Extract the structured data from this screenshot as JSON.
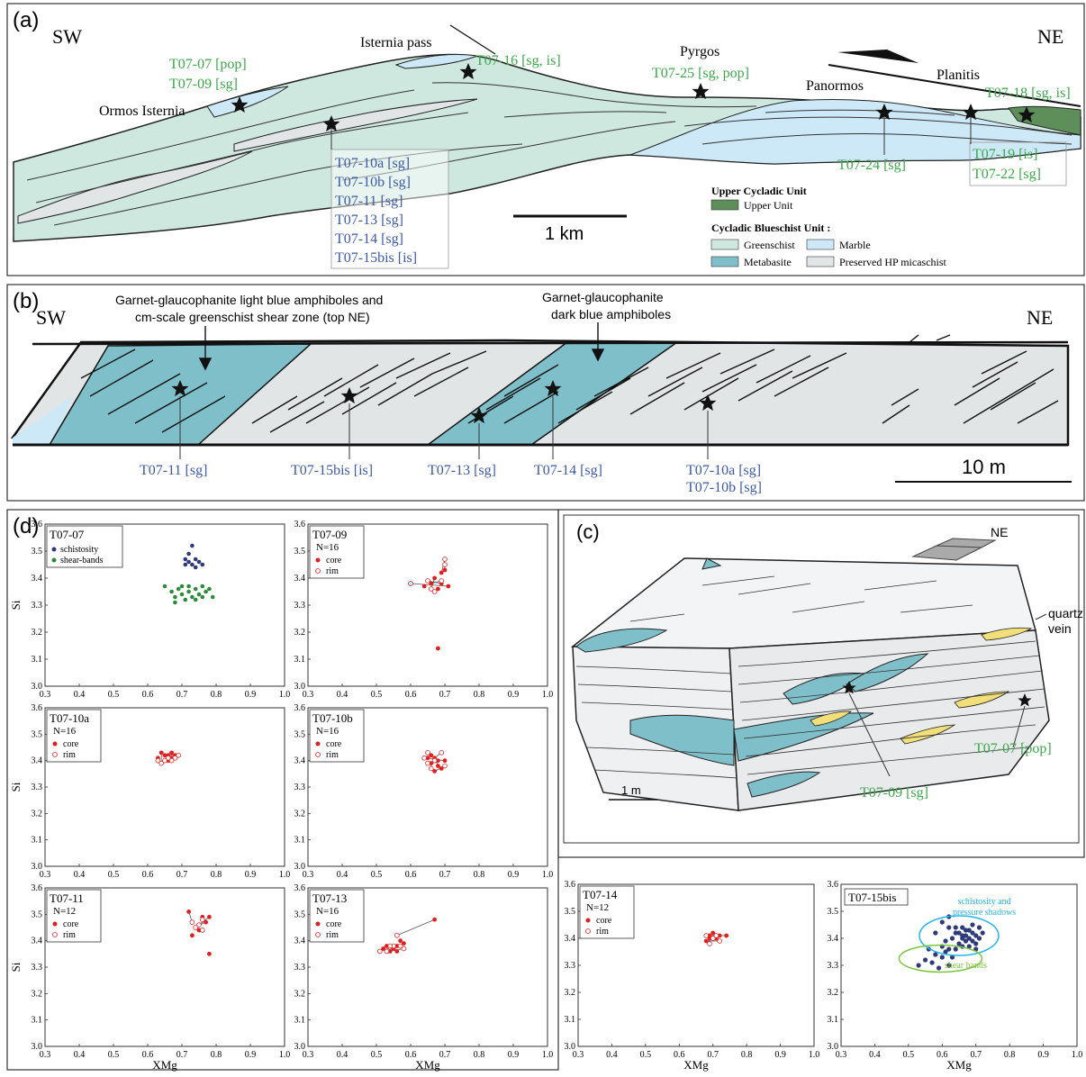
{
  "colors": {
    "greenschist": "#cfe8df",
    "marble": "#cde9f7",
    "metabasite": "#7fbfca",
    "micaschist": "#e2e5e6",
    "upper_unit": "#5e8f5b",
    "green_label": "#3ba84a",
    "blue_label": "#3d5aa6",
    "schist_blue": "#2e3a7a",
    "shear_green": "#2e8b3a",
    "core_red": "#e02020",
    "light_cyan": "#25b5e8",
    "light_green": "#7dc53e",
    "quartz": "#f2df7a"
  },
  "panel_a": {
    "label": "(a)",
    "sw": "SW",
    "ne": "NE",
    "places": {
      "ormos": "Ormos Isternia",
      "isternia": "Isternia pass",
      "pyrgos": "Pyrgos",
      "panormos": "Panormos",
      "planitis": "Planitis"
    },
    "samples": {
      "t0707": "T07-07 [pop]",
      "t0709": "T07-09 [sg]",
      "t0716": "T07-16 [sg, is]",
      "t0725": "T07-25 [sg, pop]",
      "t0718": "T07-18 [sg, is]",
      "t0724": "T07-24 [sg]",
      "t0719": "T07-19 [is]",
      "t0722": "T07-22 [sg]",
      "t0710a": "T07-10a [sg]",
      "t0710b": "T07-10b [sg]",
      "t0711": "T07-11 [sg]",
      "t0713": "T07-13 [sg]",
      "t0714": "T07-14 [sg]",
      "t0715bis": "T07-15bis [is]"
    },
    "scale": "1 km",
    "legend": {
      "upper_heading": "Upper Cycladic Unit",
      "upper_unit": "Upper Unit",
      "cbu_heading": "Cycladic Blueschist Unit :",
      "greenschist": "Greenschist",
      "marble": "Marble",
      "metabasite": "Metabasite",
      "micaschist": "Preserved HP micaschist"
    }
  },
  "panel_b": {
    "label": "(b)",
    "sw": "SW",
    "ne": "NE",
    "annot1_line1": "Garnet-glaucophanite light blue amphiboles and",
    "annot1_line2": "cm-scale greenschist shear zone (top NE)",
    "annot2_line1": "Garnet-glaucophanite",
    "annot2_line2": "dark blue amphiboles",
    "samples": {
      "t0711": "T07-11 [sg]",
      "t0715bis": "T07-15bis [is]",
      "t0713": "T07-13 [sg]",
      "t0714": "T07-14 [sg]",
      "t0710a": "T07-10a [sg]",
      "t0710b": "T07-10b [sg]"
    },
    "scale": "10 m"
  },
  "panel_c": {
    "label": "(c)",
    "ne": "NE",
    "quartz1": "quartz",
    "quartz2": "vein",
    "t0707": "T07-07 [pop]",
    "t0709": "T07-09 [sg]",
    "scale": "1 m"
  },
  "panel_d": {
    "label": "(d)",
    "xlabel": "XMg",
    "ylabel": "Si",
    "xticks": [
      "0.3",
      "0.4",
      "0.5",
      "0.6",
      "0.7",
      "0.8",
      "0.9",
      "1.0"
    ],
    "yticks": [
      "3.0",
      "3.1",
      "3.2",
      "3.3",
      "3.4",
      "3.5",
      "3.6"
    ],
    "plots": [
      {
        "title": "T07-07",
        "leg": [
          "schistosity",
          "shear-bands"
        ]
      },
      {
        "title": "T07-09",
        "n": "N=16",
        "leg": [
          "core",
          "rim"
        ]
      },
      {
        "title": "T07-10a",
        "n": "N=16",
        "leg": [
          "core",
          "rim"
        ]
      },
      {
        "title": "T07-10b",
        "n": "N=16",
        "leg": [
          "core",
          "rim"
        ]
      },
      {
        "title": "T07-11",
        "n": "N=12",
        "leg": [
          "core",
          "rim"
        ]
      },
      {
        "title": "T07-13",
        "n": "N=16",
        "leg": [
          "core",
          "rim"
        ]
      },
      {
        "title": "T07-14",
        "n": "N=12",
        "leg": [
          "core",
          "rim"
        ]
      },
      {
        "title": "T07-15bis",
        "ann1a": "schistosity and",
        "ann1b": "pressure shadows",
        "ann2": "shear bands"
      }
    ]
  },
  "chart_data": [
    {
      "type": "scatter",
      "title": "T07-07",
      "xlim": [
        0.3,
        1.0
      ],
      "ylim": [
        3.0,
        3.6
      ],
      "series": [
        {
          "name": "schistosity",
          "points": [
            [
              0.73,
              3.52
            ],
            [
              0.72,
              3.49
            ],
            [
              0.71,
              3.47
            ],
            [
              0.72,
              3.46
            ],
            [
              0.74,
              3.47
            ],
            [
              0.73,
              3.45
            ],
            [
              0.75,
              3.46
            ],
            [
              0.74,
              3.44
            ],
            [
              0.71,
              3.45
            ],
            [
              0.76,
              3.45
            ]
          ]
        },
        {
          "name": "shear-bands",
          "points": [
            [
              0.65,
              3.37
            ],
            [
              0.67,
              3.35
            ],
            [
              0.68,
              3.33
            ],
            [
              0.69,
              3.36
            ],
            [
              0.7,
              3.34
            ],
            [
              0.71,
              3.32
            ],
            [
              0.72,
              3.35
            ],
            [
              0.73,
              3.33
            ],
            [
              0.74,
              3.36
            ],
            [
              0.75,
              3.34
            ],
            [
              0.76,
              3.37
            ],
            [
              0.77,
              3.35
            ],
            [
              0.78,
              3.36
            ],
            [
              0.79,
              3.33
            ],
            [
              0.72,
              3.37
            ],
            [
              0.74,
              3.32
            ],
            [
              0.76,
              3.33
            ],
            [
              0.68,
              3.31
            ],
            [
              0.7,
              3.37
            ]
          ]
        }
      ]
    },
    {
      "type": "scatter",
      "title": "T07-09",
      "xlim": [
        0.3,
        1.0
      ],
      "ylim": [
        3.0,
        3.6
      ],
      "series": [
        {
          "name": "core",
          "points": [
            [
              0.69,
              3.42
            ],
            [
              0.7,
              3.43
            ],
            [
              0.71,
              3.37
            ],
            [
              0.67,
              3.4
            ],
            [
              0.66,
              3.38
            ],
            [
              0.68,
              3.36
            ],
            [
              0.69,
              3.38
            ],
            [
              0.64,
              3.37
            ],
            [
              0.68,
              3.14
            ]
          ]
        },
        {
          "name": "rim",
          "points": [
            [
              0.7,
              3.47
            ],
            [
              0.7,
              3.45
            ],
            [
              0.6,
              3.38
            ],
            [
              0.66,
              3.36
            ],
            [
              0.69,
              3.39
            ],
            [
              0.67,
              3.35
            ],
            [
              0.65,
              3.39
            ]
          ]
        }
      ]
    },
    {
      "type": "scatter",
      "title": "T07-10a",
      "xlim": [
        0.3,
        1.0
      ],
      "ylim": [
        3.0,
        3.6
      ],
      "series": [
        {
          "name": "core",
          "points": [
            [
              0.64,
              3.43
            ],
            [
              0.66,
              3.42
            ],
            [
              0.65,
              3.4
            ],
            [
              0.67,
              3.41
            ],
            [
              0.68,
              3.42
            ],
            [
              0.63,
              3.41
            ],
            [
              0.66,
              3.4
            ],
            [
              0.65,
              3.42
            ],
            [
              0.67,
              3.43
            ]
          ]
        },
        {
          "name": "rim",
          "points": [
            [
              0.64,
              3.39
            ],
            [
              0.69,
              3.42
            ],
            [
              0.66,
              3.41
            ],
            [
              0.65,
              3.4
            ],
            [
              0.68,
              3.41
            ],
            [
              0.63,
              3.4
            ],
            [
              0.67,
              3.4
            ]
          ]
        }
      ]
    },
    {
      "type": "scatter",
      "title": "T07-10b",
      "xlim": [
        0.3,
        1.0
      ],
      "ylim": [
        3.0,
        3.6
      ],
      "series": [
        {
          "name": "core",
          "points": [
            [
              0.66,
              3.42
            ],
            [
              0.67,
              3.41
            ],
            [
              0.68,
              3.4
            ],
            [
              0.66,
              3.39
            ],
            [
              0.69,
              3.37
            ],
            [
              0.67,
              3.36
            ],
            [
              0.7,
              3.4
            ],
            [
              0.65,
              3.41
            ],
            [
              0.68,
              3.38
            ]
          ]
        },
        {
          "name": "rim",
          "points": [
            [
              0.65,
              3.43
            ],
            [
              0.69,
              3.43
            ],
            [
              0.65,
              3.39
            ],
            [
              0.66,
              3.37
            ],
            [
              0.67,
              3.4
            ],
            [
              0.7,
              3.38
            ],
            [
              0.64,
              3.41
            ]
          ]
        }
      ]
    },
    {
      "type": "scatter",
      "title": "T07-11",
      "xlim": [
        0.3,
        1.0
      ],
      "ylim": [
        3.0,
        3.6
      ],
      "series": [
        {
          "name": "core",
          "points": [
            [
              0.72,
              3.51
            ],
            [
              0.76,
              3.49
            ],
            [
              0.78,
              3.49
            ],
            [
              0.77,
              3.47
            ],
            [
              0.75,
              3.44
            ],
            [
              0.73,
              3.42
            ],
            [
              0.78,
              3.35
            ]
          ]
        },
        {
          "name": "rim",
          "points": [
            [
              0.73,
              3.47
            ],
            [
              0.76,
              3.48
            ],
            [
              0.74,
              3.45
            ],
            [
              0.75,
              3.46
            ],
            [
              0.76,
              3.44
            ]
          ]
        }
      ]
    },
    {
      "type": "scatter",
      "title": "T07-13",
      "xlim": [
        0.3,
        1.0
      ],
      "ylim": [
        3.0,
        3.6
      ],
      "series": [
        {
          "name": "core",
          "points": [
            [
              0.67,
              3.48
            ],
            [
              0.58,
              3.39
            ],
            [
              0.56,
              3.38
            ],
            [
              0.55,
              3.37
            ],
            [
              0.54,
              3.36
            ],
            [
              0.56,
              3.36
            ],
            [
              0.53,
              3.38
            ],
            [
              0.57,
              3.4
            ],
            [
              0.52,
              3.37
            ]
          ]
        },
        {
          "name": "rim",
          "points": [
            [
              0.56,
              3.42
            ],
            [
              0.51,
              3.36
            ],
            [
              0.53,
              3.36
            ],
            [
              0.55,
              3.38
            ],
            [
              0.58,
              3.37
            ],
            [
              0.54,
              3.38
            ],
            [
              0.57,
              3.38
            ]
          ]
        }
      ]
    },
    {
      "type": "scatter",
      "title": "T07-14",
      "xlim": [
        0.3,
        1.0
      ],
      "ylim": [
        3.0,
        3.6
      ],
      "series": [
        {
          "name": "core",
          "points": [
            [
              0.69,
              3.41
            ],
            [
              0.7,
              3.42
            ],
            [
              0.71,
              3.4
            ],
            [
              0.74,
              3.41
            ],
            [
              0.68,
              3.39
            ],
            [
              0.69,
              3.4
            ],
            [
              0.72,
              3.41
            ]
          ]
        },
        {
          "name": "rim",
          "points": [
            [
              0.69,
              3.38
            ],
            [
              0.71,
              3.41
            ],
            [
              0.7,
              3.4
            ],
            [
              0.68,
              3.41
            ],
            [
              0.72,
              3.39
            ]
          ]
        }
      ]
    },
    {
      "type": "scatter",
      "title": "T07-15bis",
      "xlim": [
        0.3,
        1.0
      ],
      "ylim": [
        3.0,
        3.6
      ],
      "series": [
        {
          "name": "schistosity and pressure shadows",
          "points": [
            [
              0.6,
              3.46
            ],
            [
              0.62,
              3.44
            ],
            [
              0.64,
              3.42
            ],
            [
              0.66,
              3.41
            ],
            [
              0.67,
              3.43
            ],
            [
              0.68,
              3.4
            ],
            [
              0.69,
              3.42
            ],
            [
              0.7,
              3.41
            ],
            [
              0.71,
              3.4
            ],
            [
              0.67,
              3.39
            ],
            [
              0.65,
              3.38
            ],
            [
              0.63,
              3.4
            ],
            [
              0.68,
              3.37
            ],
            [
              0.7,
              3.38
            ],
            [
              0.66,
              3.44
            ],
            [
              0.64,
              3.36
            ],
            [
              0.69,
              3.45
            ],
            [
              0.72,
              3.42
            ],
            [
              0.61,
              3.39
            ],
            [
              0.66,
              3.37
            ],
            [
              0.68,
              3.43
            ],
            [
              0.65,
              3.42
            ],
            [
              0.7,
              3.36
            ],
            [
              0.67,
              3.41
            ],
            [
              0.71,
              3.44
            ],
            [
              0.62,
              3.48
            ],
            [
              0.58,
              3.42
            ],
            [
              0.69,
              3.39
            ],
            [
              0.66,
              3.4
            ],
            [
              0.64,
              3.44
            ]
          ]
        },
        {
          "name": "shear bands",
          "points": [
            [
              0.53,
              3.3
            ],
            [
              0.55,
              3.32
            ],
            [
              0.57,
              3.31
            ],
            [
              0.6,
              3.33
            ],
            [
              0.62,
              3.3
            ],
            [
              0.58,
              3.34
            ],
            [
              0.61,
              3.35
            ],
            [
              0.56,
              3.36
            ],
            [
              0.63,
              3.33
            ],
            [
              0.59,
              3.29
            ],
            [
              0.6,
              3.37
            ],
            [
              0.62,
              3.36
            ]
          ]
        }
      ]
    }
  ]
}
